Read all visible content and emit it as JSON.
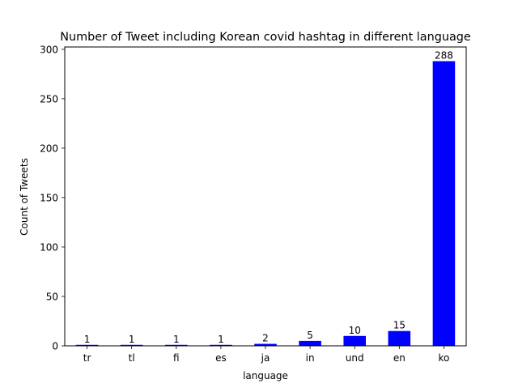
{
  "chart_data": {
    "type": "bar",
    "title": "Number of Tweet including Korean covid hashtag in different language",
    "xlabel": "language",
    "ylabel": "Count of Tweets",
    "categories": [
      "tr",
      "tl",
      "fi",
      "es",
      "ja",
      "in",
      "und",
      "en",
      "ko"
    ],
    "values": [
      1,
      1,
      1,
      1,
      2,
      5,
      10,
      15,
      288
    ],
    "data_labels": [
      "1",
      "1",
      "1",
      "1",
      "2",
      "5",
      "10",
      "15",
      "288"
    ],
    "ylim": [
      0,
      302.35
    ],
    "yticks": [
      0,
      50,
      100,
      150,
      200,
      250,
      300
    ],
    "ytick_labels": [
      "0",
      "50",
      "100",
      "150",
      "200",
      "250",
      "300"
    ],
    "grid": false,
    "legend": "none",
    "bar_color": "#0000ff"
  }
}
